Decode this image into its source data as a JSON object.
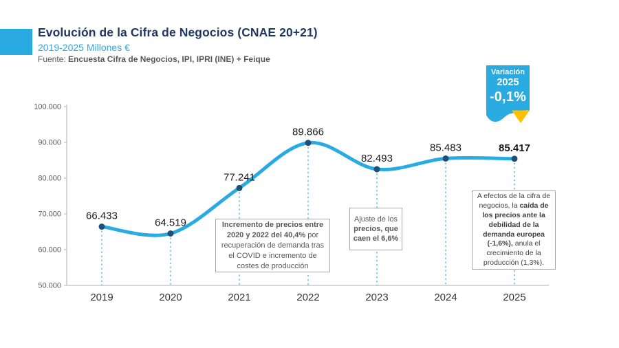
{
  "header": {
    "title": "Evolución de la Cifra de Negocios (CNAE 20+21)",
    "subtitle": "2019-2025 Millones €",
    "source_segments": [
      {
        "t": "Fuente: ",
        "b": false
      },
      {
        "t": "Encuesta Cifra de Negocios, IPI, IPRI (INE) + Feique",
        "b": true
      }
    ],
    "accent_color": "#29abe2",
    "title_color": "#1f3864"
  },
  "badge": {
    "line1": "Variación",
    "line2": "2025",
    "line3": "-0,1%",
    "ribbon_color": "#29abe2",
    "arrow_color": "#ffc000"
  },
  "chart_data": {
    "type": "line",
    "title": "Evolución de la Cifra de Negocios (CNAE 20+21)",
    "subtitle": "2019-2025 Millones €",
    "xlabel": "",
    "ylabel": "",
    "categories": [
      "2019",
      "2020",
      "2021",
      "2022",
      "2023",
      "2024",
      "2025"
    ],
    "values": [
      66433,
      64519,
      77241,
      89866,
      82493,
      85483,
      85417
    ],
    "point_labels": [
      {
        "text": "66.433",
        "bold": false
      },
      {
        "text": "64.519",
        "bold": false
      },
      {
        "text": "77.241",
        "bold": false
      },
      {
        "text": "89.866",
        "bold": false
      },
      {
        "text": "82.493",
        "bold": false
      },
      {
        "text": "85.483",
        "bold": false
      },
      {
        "text": "85.417",
        "bold": true
      }
    ],
    "ylim": [
      50000,
      100000
    ],
    "y_ticks": [
      {
        "value": 50000,
        "label": "50.000"
      },
      {
        "value": 60000,
        "label": "60.000"
      },
      {
        "value": 70000,
        "label": "70.000"
      },
      {
        "value": 80000,
        "label": "80.000"
      },
      {
        "value": 90000,
        "label": "90.000"
      },
      {
        "value": 100000,
        "label": "100.000"
      }
    ],
    "grid": false,
    "legend": false,
    "smooth": true,
    "line_color": "#29abe2",
    "marker_color": "#1f4e79",
    "axis_color": "#bfbfbf",
    "tick_label_color": "#595959",
    "x_label_color": "#333333",
    "point_label_color": "#1a1a1a"
  },
  "annotations": [
    {
      "segments": [
        {
          "t": "Incremento de precios entre 2020 y 2022 del 40,4%",
          "b": true
        },
        {
          "t": " por recuperación de demanda tras el COVID e incremento de costes de producción",
          "b": false
        }
      ]
    },
    {
      "segments": [
        {
          "t": "Ajuste de los ",
          "b": false
        },
        {
          "t": "precios, que caen el 6,6%",
          "b": true
        }
      ]
    },
    {
      "segments": [
        {
          "t": "A efectos de la cifra de negocios, la ",
          "b": false
        },
        {
          "t": "caída de los precios ante la debilidad de la demanda europea (-1,6%),",
          "b": true
        },
        {
          "t": " anula el crecimiento de la producción (1,3%).",
          "b": false
        }
      ]
    }
  ]
}
